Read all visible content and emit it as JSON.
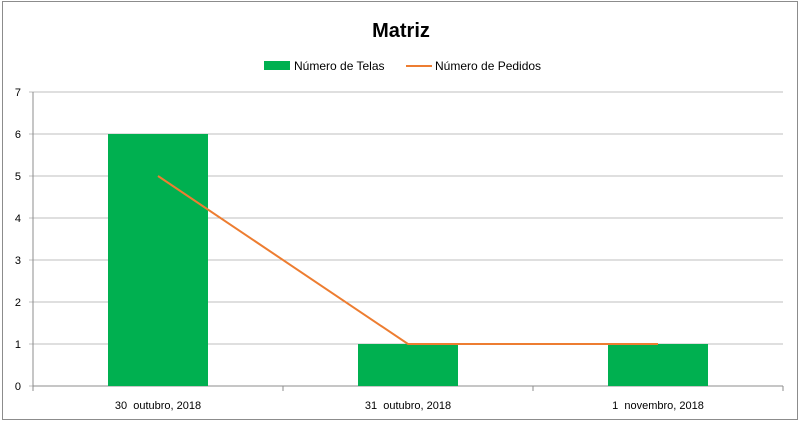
{
  "chart_data": {
    "type": "bar",
    "title": "Matriz",
    "categories": [
      "30  outubro, 2018",
      "31  outubro, 2018",
      "1  novembro, 2018"
    ],
    "series": [
      {
        "name": "Número de Telas",
        "type": "bar",
        "color": "#00b050",
        "values": [
          6,
          1,
          1
        ]
      },
      {
        "name": "Número de Pedidos",
        "type": "line",
        "color": "#ed7d31",
        "values": [
          5,
          1,
          1
        ]
      }
    ],
    "ylim": [
      0,
      7
    ],
    "yticks": [
      0,
      1,
      2,
      3,
      4,
      5,
      6,
      7
    ],
    "grid": true,
    "legend": "top"
  }
}
